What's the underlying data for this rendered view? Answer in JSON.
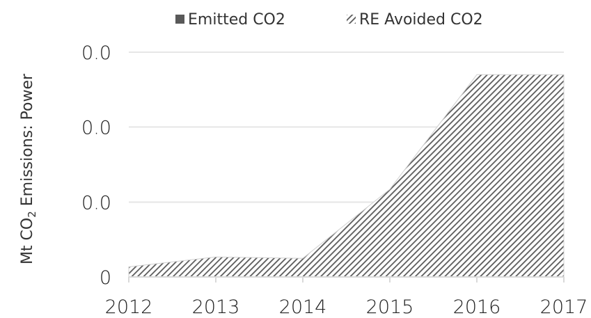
{
  "chart_data": {
    "type": "area",
    "categories": [
      "2012",
      "2013",
      "2014",
      "2015",
      "2016",
      "2017"
    ],
    "series": [
      {
        "name": "Emitted CO2",
        "values": [
          0,
          0,
          0,
          0,
          0,
          0
        ],
        "color": "#595959",
        "fill": "solid"
      },
      {
        "name": "RE Avoided CO2",
        "values": [
          0.0045,
          0.0089,
          0.0083,
          0.039,
          0.09,
          0.09
        ],
        "color": "#595959",
        "fill": "diagonal-hatch"
      }
    ],
    "yticks": [
      "0",
      "0.0",
      "0.0",
      "0.0"
    ],
    "ylim": [
      0,
      0.1
    ],
    "ytick_values": [
      0,
      0.0333,
      0.0667,
      0.1
    ],
    "ylabel_main": "Mt CO",
    "ylabel_sub": "2",
    "ylabel_rest": " Emissions: Power",
    "xlabel": "",
    "grid": true,
    "legend_position": "top"
  }
}
